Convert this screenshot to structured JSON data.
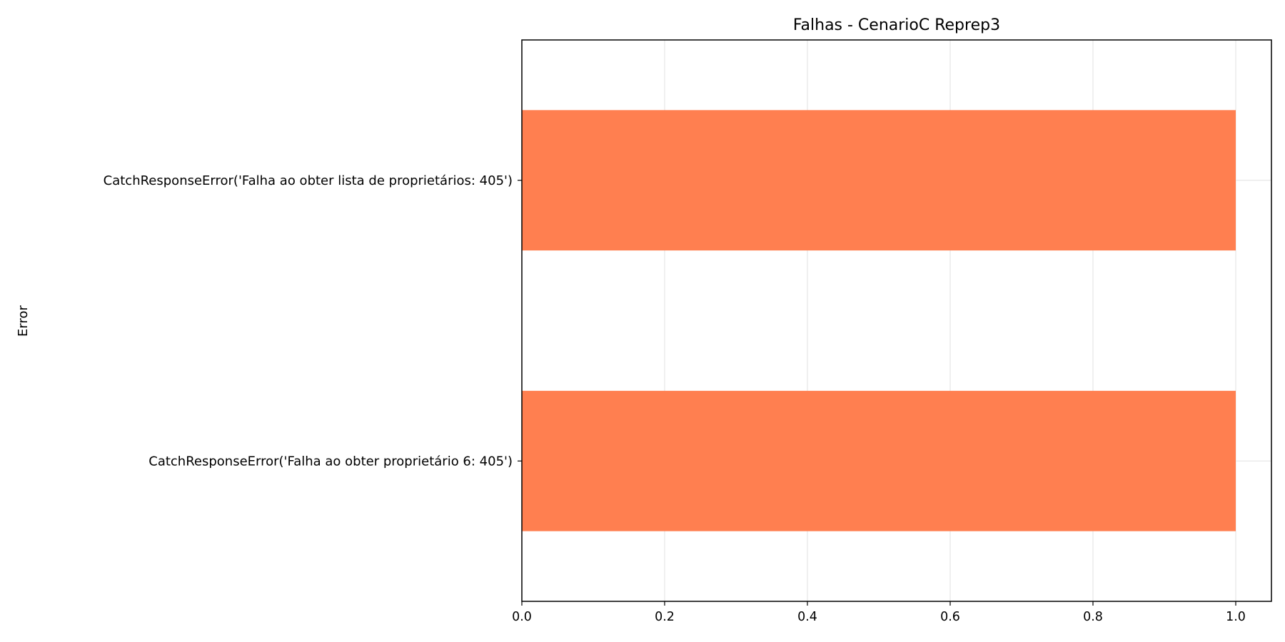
{
  "chart_data": {
    "type": "bar",
    "orientation": "horizontal",
    "title": "Falhas - CenarioC Reprep3",
    "xlabel": "",
    "ylabel": "Error",
    "categories": [
      "CatchResponseError('Falha ao obter proprietário 6: 405')",
      "CatchResponseError('Falha ao obter lista de proprietários: 405')"
    ],
    "values": [
      1,
      1
    ],
    "xlim": [
      0,
      1.05
    ],
    "xticks": [
      0.0,
      0.2,
      0.4,
      0.6,
      0.8,
      1.0
    ],
    "xtick_labels": [
      "0.0",
      "0.2",
      "0.4",
      "0.6",
      "0.8",
      "1.0"
    ],
    "grid": true,
    "bar_color": "#FF7F50",
    "grid_color": "#e6e6e6"
  }
}
